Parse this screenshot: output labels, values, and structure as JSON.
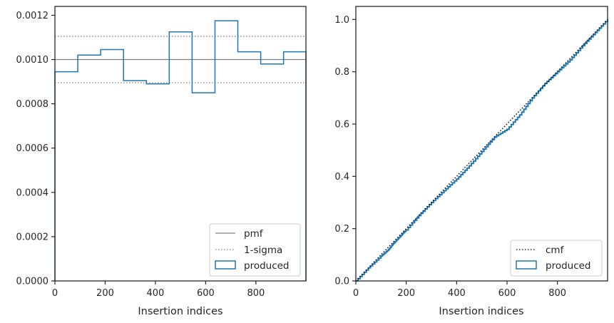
{
  "chart_data": [
    {
      "type": "line",
      "xlabel": "Insertion indices",
      "ylabel": "",
      "xlim": [
        0,
        999
      ],
      "ylim": [
        0,
        0.00124
      ],
      "x_ticks": [
        0,
        200,
        400,
        600,
        800
      ],
      "x_tick_labels": [
        "0",
        "200",
        "400",
        "600",
        "800"
      ],
      "y_ticks": [
        0,
        0.0002,
        0.0004,
        0.0006,
        0.0008,
        0.001,
        0.0012
      ],
      "y_tick_labels": [
        "0.0000",
        "0.0002",
        "0.0004",
        "0.0006",
        "0.0008",
        "0.0010",
        "0.0012"
      ],
      "grid": false,
      "legend_position": "lower-right",
      "series": [
        {
          "name": "pmf",
          "style": "solid",
          "color": "#808080",
          "y": 0.001
        },
        {
          "name": "1-sigma",
          "style": "dotted",
          "color": "#808080",
          "y_values": [
            0.000895,
            0.001105
          ]
        },
        {
          "name": "produced",
          "style": "step",
          "color": "#1f77b4",
          "bin_edges": [
            0,
            91,
            182,
            273,
            364,
            455,
            546,
            637,
            728,
            819,
            910,
            999
          ],
          "values": [
            0.000945,
            0.00102,
            0.001045,
            0.000905,
            0.00089,
            0.001125,
            0.00085,
            0.001175,
            0.001035,
            0.00098,
            0.001035
          ]
        }
      ]
    },
    {
      "type": "line",
      "xlabel": "Insertion indices",
      "ylabel": "",
      "xlim": [
        0,
        999
      ],
      "ylim": [
        0,
        1.05
      ],
      "x_ticks": [
        0,
        200,
        400,
        600,
        800
      ],
      "x_tick_labels": [
        "0",
        "200",
        "400",
        "600",
        "800"
      ],
      "y_ticks": [
        0,
        0.2,
        0.4,
        0.6,
        0.8,
        1.0
      ],
      "y_tick_labels": [
        "0.0",
        "0.2",
        "0.4",
        "0.6",
        "0.8",
        "1.0"
      ],
      "grid": false,
      "legend_position": "lower-right",
      "series": [
        {
          "name": "cmf",
          "style": "dotted",
          "color": "#000000",
          "x": [
            0,
            999
          ],
          "y": [
            0,
            1.0
          ]
        },
        {
          "name": "produced",
          "style": "step",
          "color": "#1f77b4",
          "x": [
            0,
            50,
            100,
            130,
            150,
            180,
            200,
            250,
            300,
            350,
            400,
            450,
            500,
            550,
            600,
            650,
            700,
            750,
            800,
            850,
            900,
            950,
            999
          ],
          "y": [
            0,
            0.05,
            0.095,
            0.12,
            0.145,
            0.175,
            0.195,
            0.25,
            0.3,
            0.345,
            0.39,
            0.44,
            0.495,
            0.55,
            0.58,
            0.635,
            0.7,
            0.755,
            0.8,
            0.845,
            0.9,
            0.95,
            1.0
          ]
        }
      ]
    }
  ]
}
